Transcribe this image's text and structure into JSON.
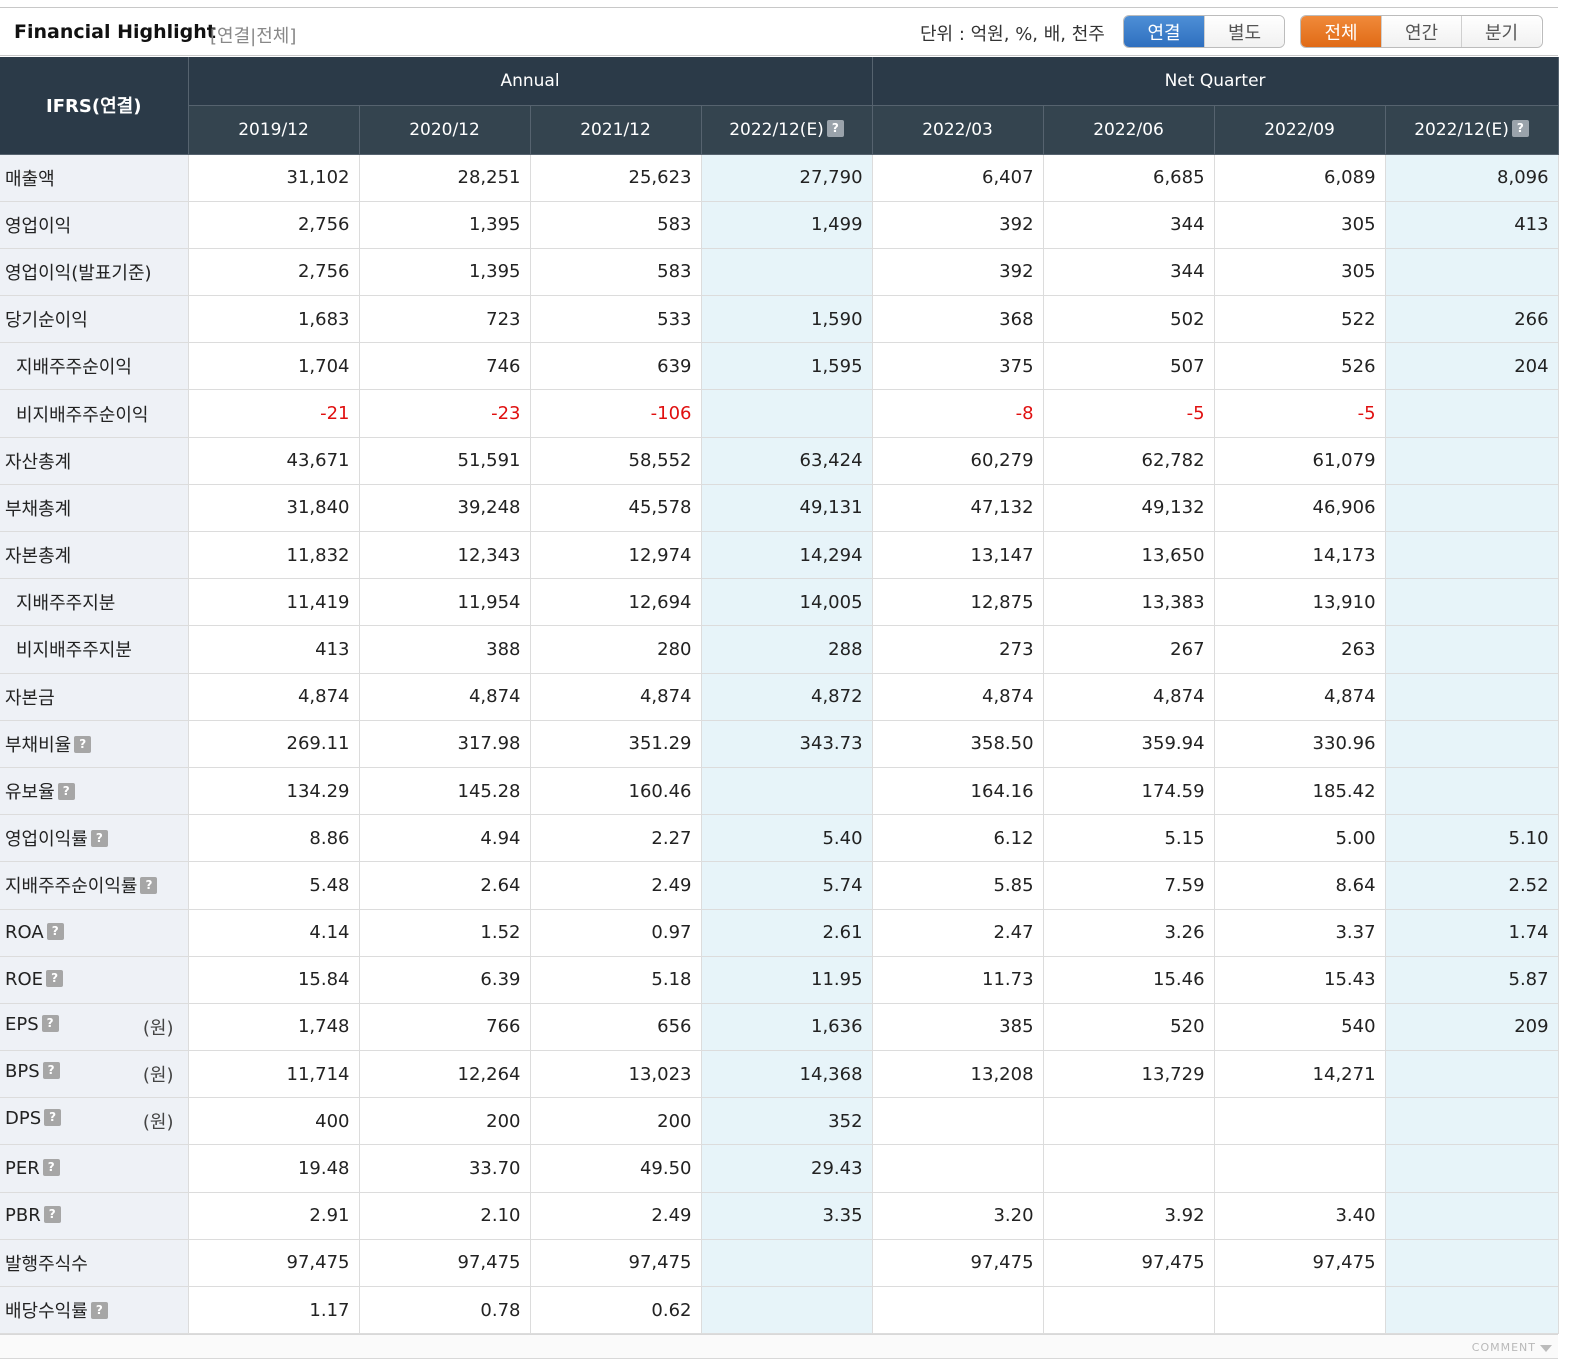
{
  "header": {
    "title": "Financial Highlight",
    "subtitle": "[연결|전체]",
    "unit": "단위 : 억원, %, 배, 천주",
    "toggle_basis": [
      {
        "label": "연결",
        "active": true
      },
      {
        "label": "별도",
        "active": false
      }
    ],
    "toggle_period": [
      {
        "label": "전체",
        "active": true
      },
      {
        "label": "연간",
        "active": false
      },
      {
        "label": "분기",
        "active": false
      }
    ]
  },
  "table": {
    "row_header": "IFRS(연결)",
    "groups": {
      "annual": "Annual",
      "quarter": "Net Quarter"
    },
    "periods": [
      "2019/12",
      "2020/12",
      "2021/12",
      "2022/12(E)",
      "2022/03",
      "2022/06",
      "2022/09",
      "2022/12(E)"
    ],
    "rows": [
      {
        "label": "매출액",
        "values": [
          "31,102",
          "28,251",
          "25,623",
          "27,790",
          "6,407",
          "6,685",
          "6,089",
          "8,096"
        ]
      },
      {
        "label": "영업이익",
        "values": [
          "2,756",
          "1,395",
          "583",
          "1,499",
          "392",
          "344",
          "305",
          "413"
        ]
      },
      {
        "label": "영업이익(발표기준)",
        "values": [
          "2,756",
          "1,395",
          "583",
          "",
          "392",
          "344",
          "305",
          ""
        ]
      },
      {
        "label": "당기순이익",
        "values": [
          "1,683",
          "723",
          "533",
          "1,590",
          "368",
          "502",
          "522",
          "266"
        ]
      },
      {
        "label": "지배주주순이익",
        "indent": true,
        "values": [
          "1,704",
          "746",
          "639",
          "1,595",
          "375",
          "507",
          "526",
          "204"
        ]
      },
      {
        "label": "비지배주주순이익",
        "indent": true,
        "values": [
          "-21",
          "-23",
          "-106",
          "",
          "-8",
          "-5",
          "-5",
          ""
        ]
      },
      {
        "label": "자산총계",
        "values": [
          "43,671",
          "51,591",
          "58,552",
          "63,424",
          "60,279",
          "62,782",
          "61,079",
          ""
        ]
      },
      {
        "label": "부채총계",
        "values": [
          "31,840",
          "39,248",
          "45,578",
          "49,131",
          "47,132",
          "49,132",
          "46,906",
          ""
        ]
      },
      {
        "label": "자본총계",
        "values": [
          "11,832",
          "12,343",
          "12,974",
          "14,294",
          "13,147",
          "13,650",
          "14,173",
          ""
        ]
      },
      {
        "label": "지배주주지분",
        "indent": true,
        "values": [
          "11,419",
          "11,954",
          "12,694",
          "14,005",
          "12,875",
          "13,383",
          "13,910",
          ""
        ]
      },
      {
        "label": "비지배주주지분",
        "indent": true,
        "values": [
          "413",
          "388",
          "280",
          "288",
          "273",
          "267",
          "263",
          ""
        ]
      },
      {
        "label": "자본금",
        "values": [
          "4,874",
          "4,874",
          "4,874",
          "4,872",
          "4,874",
          "4,874",
          "4,874",
          ""
        ]
      },
      {
        "label": "부채비율",
        "help": true,
        "values": [
          "269.11",
          "317.98",
          "351.29",
          "343.73",
          "358.50",
          "359.94",
          "330.96",
          ""
        ]
      },
      {
        "label": "유보율",
        "help": true,
        "values": [
          "134.29",
          "145.28",
          "160.46",
          "",
          "164.16",
          "174.59",
          "185.42",
          ""
        ]
      },
      {
        "label": "영업이익률",
        "help": true,
        "values": [
          "8.86",
          "4.94",
          "2.27",
          "5.40",
          "6.12",
          "5.15",
          "5.00",
          "5.10"
        ]
      },
      {
        "label": "지배주주순이익률",
        "help": true,
        "values": [
          "5.48",
          "2.64",
          "2.49",
          "5.74",
          "5.85",
          "7.59",
          "8.64",
          "2.52"
        ]
      },
      {
        "label": "ROA",
        "help": true,
        "values": [
          "4.14",
          "1.52",
          "0.97",
          "2.61",
          "2.47",
          "3.26",
          "3.37",
          "1.74"
        ]
      },
      {
        "label": "ROE",
        "help": true,
        "values": [
          "15.84",
          "6.39",
          "5.18",
          "11.95",
          "11.73",
          "15.46",
          "15.43",
          "5.87"
        ]
      },
      {
        "label": "EPS",
        "help": true,
        "unit": "(원)",
        "values": [
          "1,748",
          "766",
          "656",
          "1,636",
          "385",
          "520",
          "540",
          "209"
        ]
      },
      {
        "label": "BPS",
        "help": true,
        "unit": "(원)",
        "values": [
          "11,714",
          "12,264",
          "13,023",
          "14,368",
          "13,208",
          "13,729",
          "14,271",
          ""
        ]
      },
      {
        "label": "DPS",
        "help": true,
        "unit": "(원)",
        "values": [
          "400",
          "200",
          "200",
          "352",
          "",
          "",
          "",
          ""
        ]
      },
      {
        "label": "PER",
        "help": true,
        "values": [
          "19.48",
          "33.70",
          "49.50",
          "29.43",
          "",
          "",
          "",
          ""
        ]
      },
      {
        "label": "PBR",
        "help": true,
        "values": [
          "2.91",
          "2.10",
          "2.49",
          "3.35",
          "3.20",
          "3.92",
          "3.40",
          ""
        ]
      },
      {
        "label": "발행주식수",
        "values": [
          "97,475",
          "97,475",
          "97,475",
          "",
          "97,475",
          "97,475",
          "97,475",
          ""
        ]
      },
      {
        "label": "배당수익률",
        "help": true,
        "values": [
          "1.17",
          "0.78",
          "0.62",
          "",
          "",
          "",
          "",
          ""
        ]
      }
    ]
  },
  "footer": {
    "comment": "COMMENT"
  },
  "icons": {
    "help": "help-icon",
    "toggle": "chevron-down-icon"
  },
  "colors": {
    "header_bg": "#2b3a48",
    "estimate_bg": "#e7f4f9",
    "negative": "#e01010",
    "active_blue": "#3a7bc8",
    "active_orange": "#e9771f"
  }
}
